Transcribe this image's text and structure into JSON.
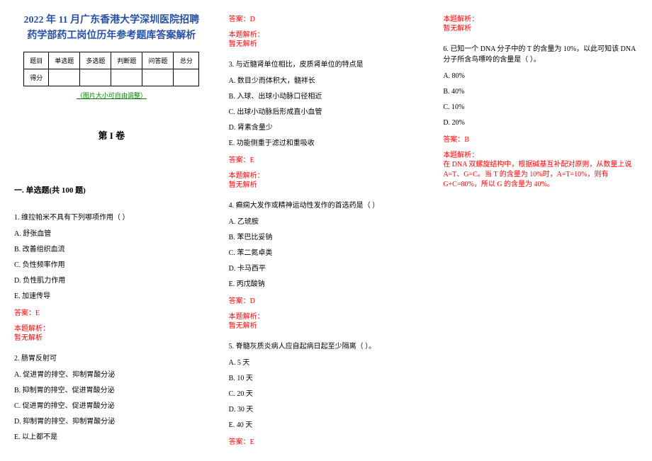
{
  "title_line1": "2022 年 11 月广东香港大学深圳医院招聘",
  "title_line2": "药学部药工岗位历年参考题库答案解析",
  "score_table": {
    "headers": [
      "题目",
      "单选题",
      "多选题",
      "判断题",
      "问答题",
      "总分"
    ],
    "row2_first": "得分"
  },
  "resize_note": "（图片大小可自由调整）",
  "volume_title": "第 I 卷",
  "section1_title": "一. 单选题(共 100 题)",
  "answer_label": "答案：",
  "analysis_label": "本题解析：",
  "no_analysis": "暂无解析",
  "q1": {
    "stem": "1. 维拉帕米不具有下列哪项作用（  ）",
    "opts": [
      "A. 舒张血管",
      "B. 改善组织血流",
      "C. 负性频率作用",
      "D. 负性肌力作用",
      "E. 加速传导"
    ],
    "ans": "E"
  },
  "q2": {
    "stem": "2. 肠胃反射可",
    "opts": [
      "A. 促进胃的排空、抑制胃酸分泌",
      "B. 抑制胃的排空、促进胃酸分泌",
      "C. 促进胃的排空、促进胃酸分泌",
      "D. 抑制胃的排空、抑制胃酸分泌",
      "E. 以上都不是"
    ],
    "ans": "D"
  },
  "q3": {
    "stem": "3. 与近髓肾单位相比，皮质肾单位的特点是",
    "opts": [
      "A. 数目少而体积大，髓袢长",
      "B. 入球、出球小动脉口径相近",
      "C. 出球小动脉后形成直小血管",
      "D. 肾素含量少",
      "E. 功能侧重于滤过和重吸收"
    ],
    "ans": "E"
  },
  "q4": {
    "stem": "4. 癫痫大发作或精神运动性发作的首选药是（  ）",
    "opts": [
      "A. 乙琥胺",
      "B. 苯巴比妥钠",
      "C. 苯二氮卓类",
      "D. 卡马西平",
      "E. 丙戊酸钠"
    ],
    "ans": "D"
  },
  "q5": {
    "stem": "5. 脊髓灰质炎病人应自起病日起至少隔离（  ）。",
    "opts": [
      "A. 5 天",
      "B. 10 天",
      "C. 20 天",
      "D. 30 天",
      "E. 40 天"
    ],
    "ans": "E"
  },
  "q6": {
    "stem": "6. 已知一个 DNA 分子中的 T 的含量为 10%，以此可知该 DNA 分子所含鸟嘌呤的含量是（ ）。",
    "opts": [
      "A. 80%",
      "B. 40%",
      "C. 10%",
      "D. 20%"
    ],
    "ans": "B",
    "analysis": "在 DNA 双螺旋结构中，根据碱基互补配对原则，从数量上说 A=T、G=C。当 T 的含量为 10%时，A=T=10%，则有 G+C=80%，所以 G 的含量为 40%。"
  }
}
